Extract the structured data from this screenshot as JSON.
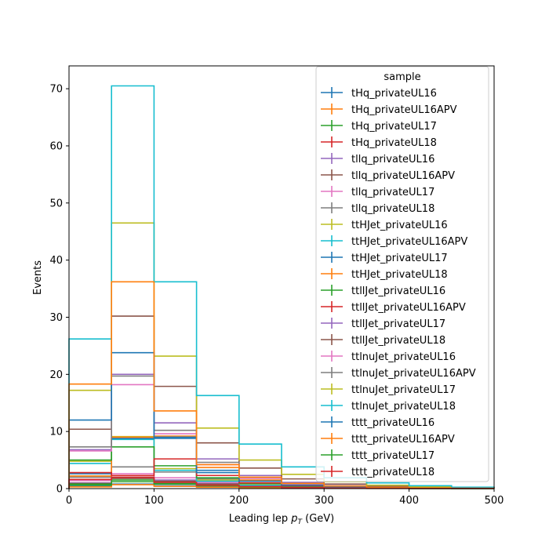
{
  "chart_data": {
    "type": "histogram-step",
    "xlabel": "Leading lep",
    "xlabel_sub": "T",
    "xlabel_unit": "(GeV)",
    "ylabel": "Events",
    "xlim": [
      0,
      500
    ],
    "ylim": [
      0,
      74
    ],
    "bin_edges": [
      0,
      50,
      100,
      150,
      200,
      250,
      300,
      350,
      400,
      450,
      500
    ],
    "x_ticks": [
      "0",
      "100",
      "200",
      "300",
      "400",
      "500"
    ],
    "y_ticks": [
      "0",
      "10",
      "20",
      "30",
      "40",
      "50",
      "60",
      "70"
    ],
    "legend_title": "sample",
    "legend_position": "top-right",
    "series": [
      {
        "name": "tHq_privateUL16",
        "color": "#1f77b4",
        "values": [
          0.4,
          0.8,
          0.5,
          0.3,
          0.2,
          0.1,
          0.1,
          0.05,
          0.03,
          0.02
        ]
      },
      {
        "name": "tHq_privateUL16APV",
        "color": "#ff7f0e",
        "values": [
          0.3,
          0.7,
          0.4,
          0.25,
          0.15,
          0.08,
          0.05,
          0.03,
          0.02,
          0.01
        ]
      },
      {
        "name": "tHq_privateUL17",
        "color": "#2ca02c",
        "values": [
          0.6,
          1.2,
          0.8,
          0.5,
          0.3,
          0.15,
          0.1,
          0.05,
          0.03,
          0.02
        ]
      },
      {
        "name": "tHq_privateUL18",
        "color": "#d62728",
        "values": [
          0.9,
          1.8,
          1.2,
          0.7,
          0.4,
          0.2,
          0.12,
          0.07,
          0.04,
          0.02
        ]
      },
      {
        "name": "tllq_privateUL16",
        "color": "#9467bd",
        "values": [
          1.0,
          2.0,
          1.5,
          0.9,
          0.5,
          0.3,
          0.15,
          0.08,
          0.05,
          0.03
        ]
      },
      {
        "name": "tllq_privateUL16APV",
        "color": "#8c564b",
        "values": [
          0.9,
          1.8,
          1.3,
          0.8,
          0.4,
          0.25,
          0.12,
          0.07,
          0.04,
          0.02
        ]
      },
      {
        "name": "tllq_privateUL17",
        "color": "#e377c2",
        "values": [
          1.4,
          2.6,
          1.9,
          1.1,
          0.6,
          0.35,
          0.2,
          0.1,
          0.06,
          0.03
        ]
      },
      {
        "name": "tllq_privateUL18",
        "color": "#7f7f7f",
        "values": [
          2.0,
          3.8,
          2.9,
          1.7,
          0.9,
          0.5,
          0.3,
          0.15,
          0.08,
          0.05
        ]
      },
      {
        "name": "ttHJet_privateUL16",
        "color": "#bcbd22",
        "values": [
          4.8,
          9.1,
          3.5,
          1.5,
          0.7,
          0.35,
          0.2,
          0.1,
          0.05,
          0.03
        ]
      },
      {
        "name": "ttHJet_privateUL16APV",
        "color": "#17becf",
        "values": [
          4.4,
          8.6,
          3.2,
          1.3,
          0.6,
          0.3,
          0.18,
          0.08,
          0.05,
          0.03
        ]
      },
      {
        "name": "ttHJet_privateUL17",
        "color": "#1f77b4",
        "values": [
          2.6,
          8.8,
          8.8,
          3.2,
          1.4,
          0.6,
          0.3,
          0.15,
          0.08,
          0.05
        ]
      },
      {
        "name": "ttHJet_privateUL18",
        "color": "#ff7f0e",
        "values": [
          2.2,
          9.0,
          9.2,
          3.7,
          1.5,
          0.7,
          0.35,
          0.2,
          0.1,
          0.05
        ]
      },
      {
        "name": "ttllJet_privateUL16",
        "color": "#2ca02c",
        "values": [
          5.0,
          7.3,
          4.0,
          1.9,
          0.9,
          0.4,
          0.2,
          0.1,
          0.06,
          0.03
        ]
      },
      {
        "name": "ttllJet_privateUL16APV",
        "color": "#d62728",
        "values": [
          2.8,
          2.3,
          5.2,
          2.3,
          1.0,
          0.5,
          0.25,
          0.12,
          0.07,
          0.04
        ]
      },
      {
        "name": "ttllJet_privateUL17",
        "color": "#9467bd",
        "values": [
          6.8,
          20.0,
          11.5,
          5.2,
          2.3,
          1.1,
          0.5,
          0.25,
          0.12,
          0.06
        ]
      },
      {
        "name": "ttllJet_privateUL18",
        "color": "#8c564b",
        "values": [
          10.4,
          30.2,
          17.9,
          8.0,
          3.6,
          1.7,
          0.8,
          0.4,
          0.2,
          0.1
        ]
      },
      {
        "name": "ttlnuJet_privateUL16",
        "color": "#e377c2",
        "values": [
          6.6,
          18.2,
          9.6,
          4.2,
          1.8,
          0.8,
          0.4,
          0.2,
          0.1,
          0.05
        ]
      },
      {
        "name": "ttlnuJet_privateUL16APV",
        "color": "#7f7f7f",
        "values": [
          7.3,
          19.7,
          10.2,
          4.6,
          2.0,
          0.9,
          0.45,
          0.22,
          0.11,
          0.06
        ]
      },
      {
        "name": "ttlnuJet_privateUL17",
        "color": "#bcbd22",
        "values": [
          17.2,
          46.5,
          23.2,
          10.6,
          5.0,
          2.5,
          1.2,
          0.6,
          0.3,
          0.15
        ]
      },
      {
        "name": "ttlnuJet_privateUL18",
        "color": "#17becf",
        "values": [
          26.2,
          70.5,
          36.2,
          16.3,
          7.8,
          3.8,
          1.9,
          1.0,
          0.5,
          0.25
        ]
      },
      {
        "name": "tttt_privateUL16",
        "color": "#1f77b4",
        "values": [
          12.0,
          23.8,
          9.0,
          2.8,
          1.3,
          0.6,
          0.3,
          0.15,
          0.08,
          0.04
        ]
      },
      {
        "name": "tttt_privateUL16APV",
        "color": "#ff7f0e",
        "values": [
          18.3,
          36.2,
          13.6,
          4.2,
          2.0,
          0.9,
          0.45,
          0.22,
          0.11,
          0.06
        ]
      },
      {
        "name": "tttt_privateUL17",
        "color": "#2ca02c",
        "values": [
          0.8,
          1.5,
          0.9,
          0.5,
          0.3,
          0.15,
          0.08,
          0.04,
          0.02,
          0.01
        ]
      },
      {
        "name": "tttt_privateUL18",
        "color": "#d62728",
        "values": [
          1.6,
          2.0,
          1.1,
          0.6,
          0.35,
          0.18,
          0.1,
          0.05,
          0.03,
          0.02
        ]
      }
    ]
  }
}
